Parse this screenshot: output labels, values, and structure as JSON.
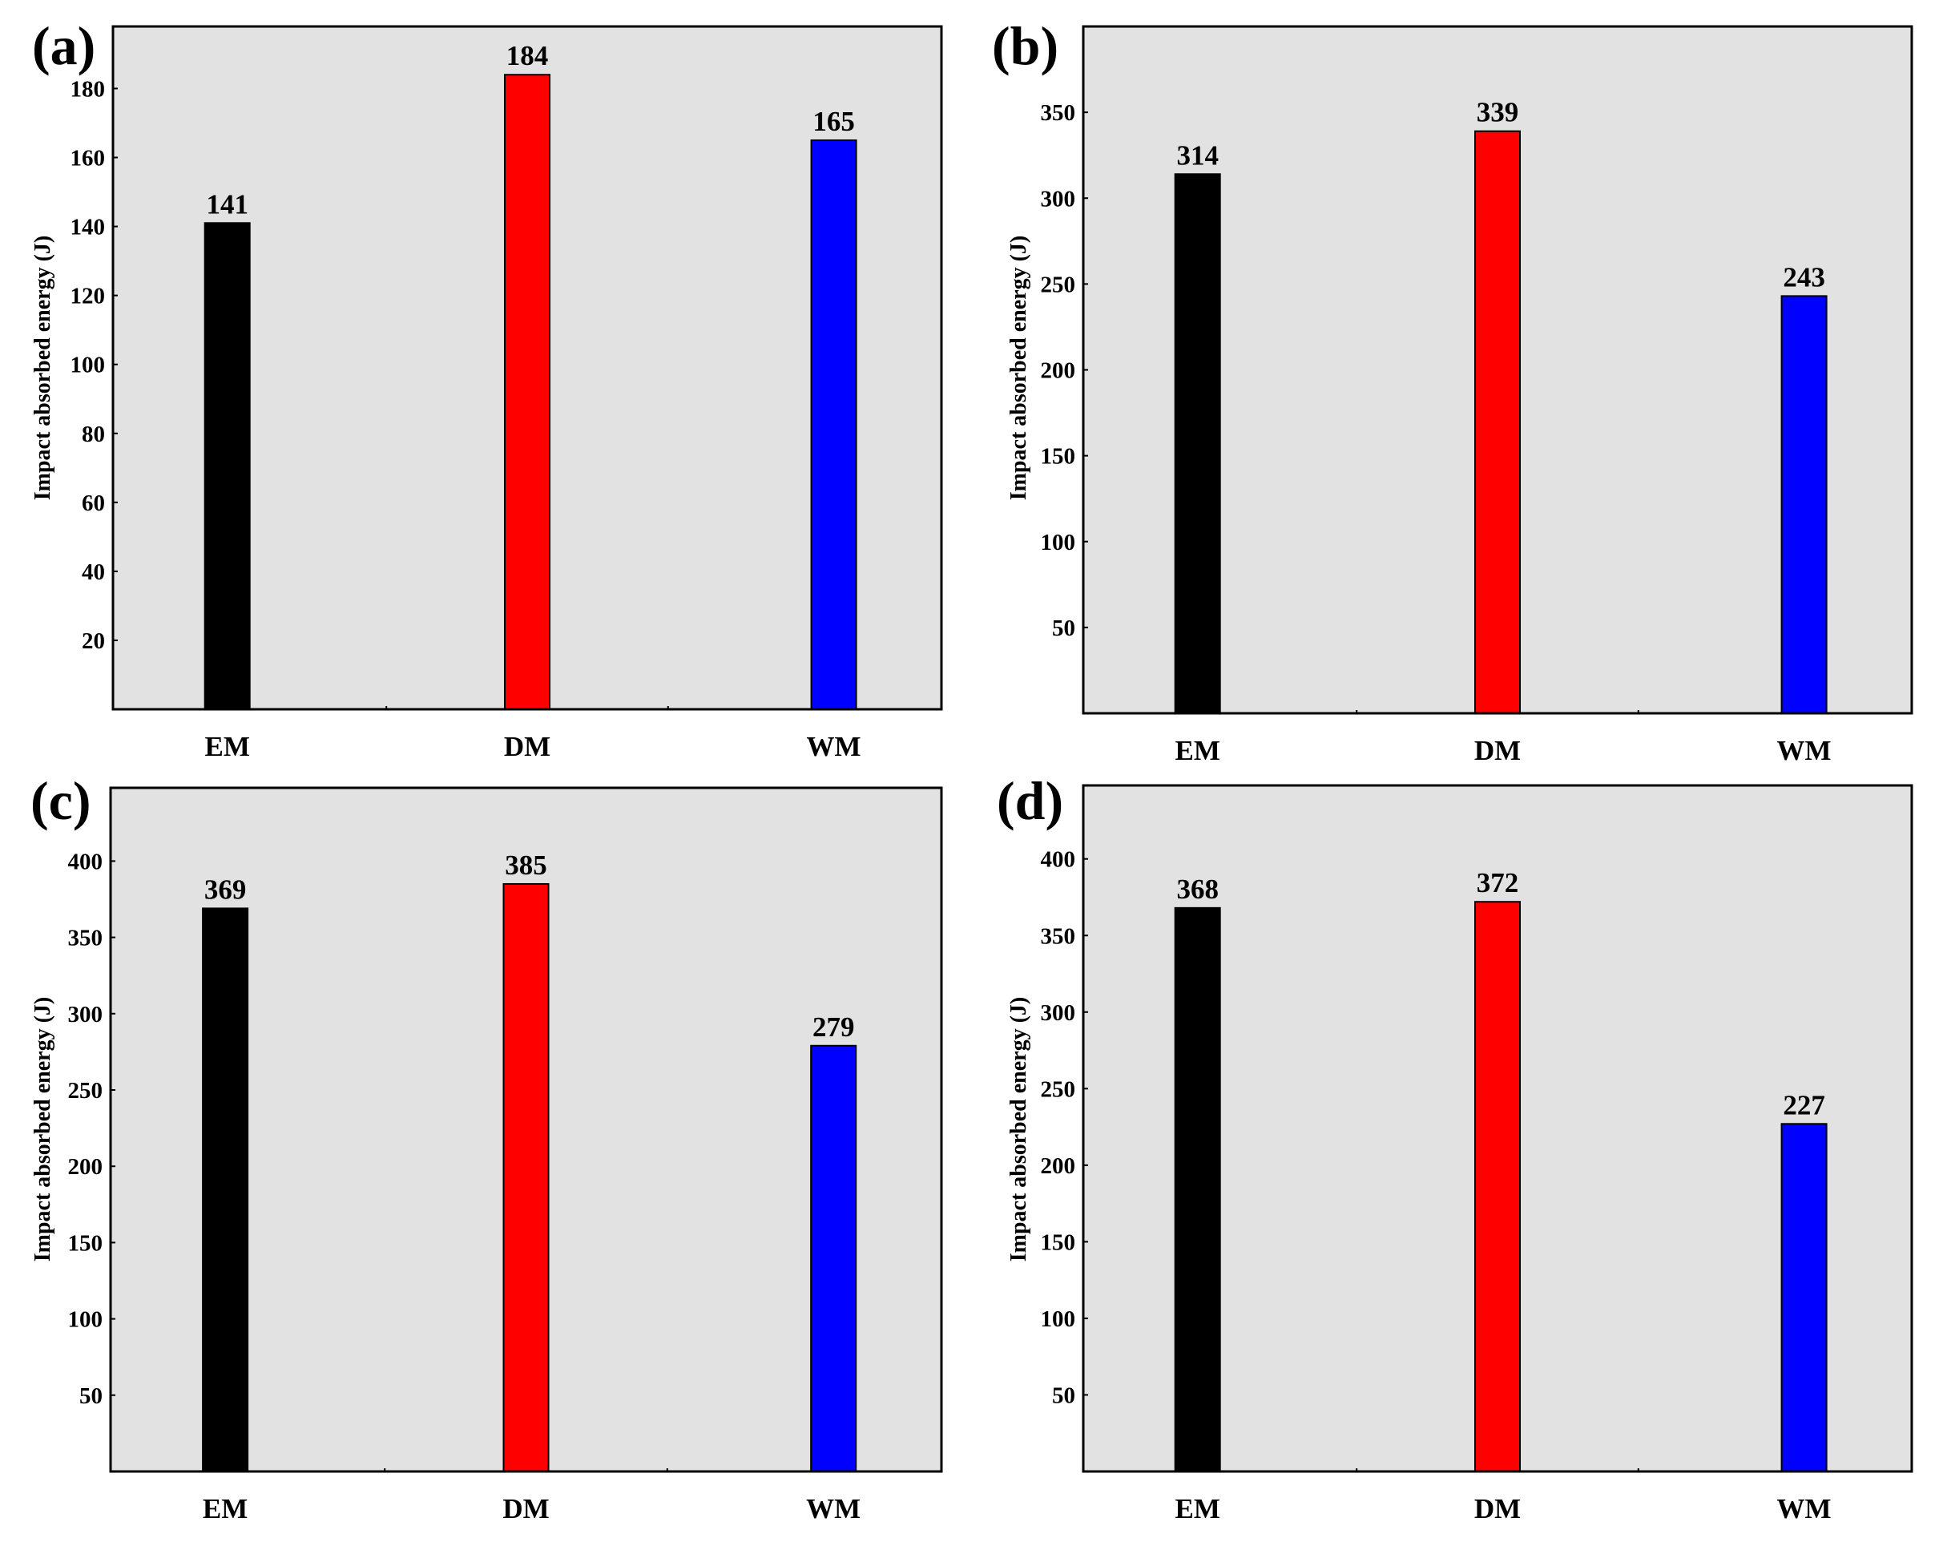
{
  "figure": {
    "background": "#ffffff",
    "plot_background": "#e2e2e2",
    "bar_colors": [
      "#000000",
      "#ff0000",
      "#0000ff"
    ]
  },
  "chart_data": [
    {
      "type": "bar",
      "panel": "(a)",
      "categories": [
        "EM",
        "DM",
        "WM"
      ],
      "values": [
        141,
        184,
        165
      ],
      "data_labels": [
        "141",
        "184",
        "165"
      ],
      "ylabel": "Impact absorbed energy (J)",
      "ylim": [
        0,
        198
      ],
      "yticks": [
        20,
        40,
        60,
        80,
        100,
        120,
        140,
        160,
        180
      ],
      "grid": false
    },
    {
      "type": "bar",
      "panel": "(b)",
      "categories": [
        "EM",
        "DM",
        "WM"
      ],
      "values": [
        314,
        339,
        243
      ],
      "data_labels": [
        "314",
        "339",
        "243"
      ],
      "ylabel": "Impact absorbed energy (J)",
      "ylim": [
        0,
        400
      ],
      "yticks": [
        50,
        100,
        150,
        200,
        250,
        300,
        350
      ],
      "grid": false
    },
    {
      "type": "bar",
      "panel": "(c)",
      "categories": [
        "EM",
        "DM",
        "WM"
      ],
      "values": [
        369,
        385,
        279
      ],
      "data_labels": [
        "369",
        "385",
        "279"
      ],
      "ylabel": "Impact absorbed energy (J)",
      "ylim": [
        0,
        448
      ],
      "yticks": [
        50,
        100,
        150,
        200,
        250,
        300,
        350,
        400
      ],
      "grid": false
    },
    {
      "type": "bar",
      "panel": "(d)",
      "categories": [
        "EM",
        "DM",
        "WM"
      ],
      "values": [
        368,
        372,
        227
      ],
      "data_labels": [
        "368",
        "372",
        "227"
      ],
      "ylabel": "Impact absorbed energy (J)",
      "ylim": [
        0,
        448
      ],
      "yticks": [
        50,
        100,
        150,
        200,
        250,
        300,
        350,
        400
      ],
      "grid": false
    }
  ]
}
